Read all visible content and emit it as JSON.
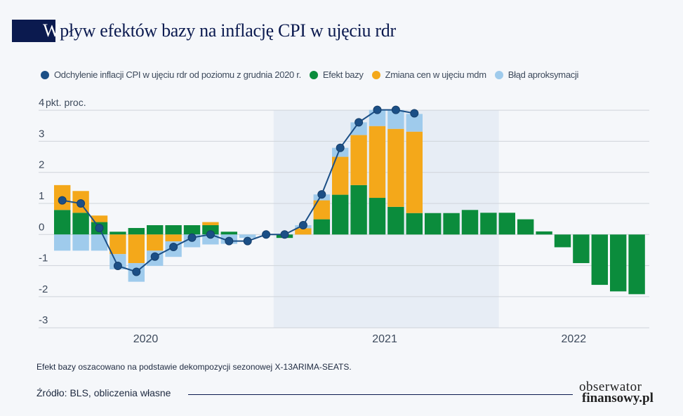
{
  "title": {
    "first_letter": "W",
    "rest": "pływ efektów bazy na inflację CPI w ujęciu rdr"
  },
  "colors": {
    "line": "#1b4f86",
    "base_effect": "#0b8c3c",
    "mom": "#f4a81a",
    "error": "#9fcbec",
    "shade": "#e7edf5",
    "title_box": "#0b1a4f"
  },
  "chart_data": {
    "type": "bar",
    "stacked": true,
    "ylabel": "pkt. proc.",
    "ylim": [
      -3,
      4
    ],
    "yticks": [
      "4",
      "3",
      "2",
      "1",
      "0",
      "-1",
      "-2",
      "-3"
    ],
    "ytick_values": [
      4,
      3,
      2,
      1,
      0,
      -1,
      -2,
      -3
    ],
    "xtick_labels": [
      "2020",
      "2021",
      "2022"
    ],
    "grid": true,
    "legend_placement": "top",
    "shaded_range_bars": [
      12,
      23
    ],
    "series": [
      {
        "name": "Odchylenie inflacji CPI w ujęciu rdr od poziomu z grudnia 2020 r.",
        "kind": "line",
        "values": [
          1.1,
          1.0,
          0.21,
          -1.01,
          -1.2,
          -0.71,
          -0.4,
          -0.1,
          0,
          -0.21,
          -0.21,
          0,
          0,
          0.3,
          1.29,
          2.79,
          3.61,
          4.01,
          4.01,
          3.9
        ]
      },
      {
        "name": "Efekt bazy",
        "kind": "bar",
        "values": [
          0.79,
          0.7,
          0.4,
          0.09,
          0.21,
          0.3,
          0.3,
          0.3,
          0.3,
          0.09,
          0,
          0,
          -0.11,
          0,
          0.49,
          1.28,
          1.59,
          1.18,
          0.89,
          0.69,
          0.69,
          0.69,
          0.79,
          0.7,
          0.7,
          0.49,
          0.1,
          -0.41,
          -0.92,
          -1.62,
          -1.83,
          -1.92
        ]
      },
      {
        "name": "Zmiana cen w ujęciu mdm",
        "kind": "bar",
        "values": [
          0.8,
          0.7,
          0.21,
          -0.63,
          -0.92,
          -0.52,
          -0.22,
          0,
          0.1,
          0,
          0,
          0,
          0,
          0.2,
          0.61,
          1.22,
          1.61,
          2.31,
          2.51,
          2.62,
          0,
          0,
          0,
          0,
          0,
          0,
          0,
          0,
          0,
          0,
          0,
          0
        ]
      },
      {
        "name": "Błąd aproksymacji",
        "kind": "bar",
        "values": [
          -0.52,
          -0.52,
          -0.52,
          -0.49,
          -0.6,
          -0.49,
          -0.5,
          -0.41,
          -0.32,
          -0.3,
          -0.11,
          0,
          0,
          0.1,
          0.19,
          0.29,
          0.41,
          0.52,
          0.61,
          0.57,
          0,
          0,
          0,
          0,
          0,
          0,
          0,
          0,
          0,
          0,
          0,
          0
        ]
      }
    ]
  },
  "footer": {
    "note": "Efekt bazy oszacowano na podstawie dekompozycji sezonowej X-13ARIMA-SEATS.",
    "source": "Źródło: BLS, obliczenia własne",
    "logo_line1": "obserwator",
    "logo_line2": "finansowy.pl"
  }
}
